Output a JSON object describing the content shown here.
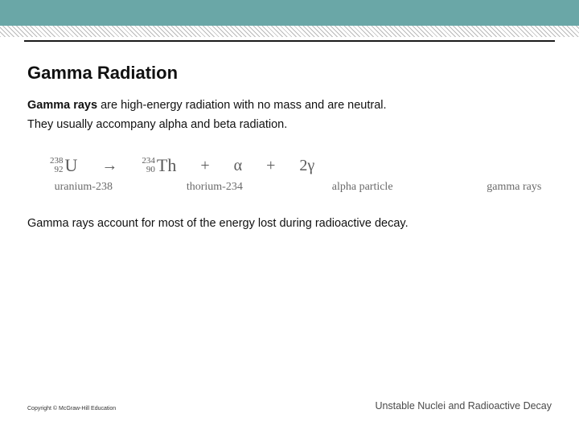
{
  "colors": {
    "topband": "#6aa7a7",
    "hatch_fg": "#b9b9b9",
    "hatch_bg": "#ffffff",
    "rule": "#1a1a1a",
    "text": "#111111",
    "eq_color": "#5b5b5b",
    "label_color": "#6a6a6a",
    "chapter_color": "#4a4a4a"
  },
  "title": "Gamma Radiation",
  "para1_bold": "Gamma rays",
  "para1_rest": " are high-energy radiation with no mass and are neutral.",
  "para2": "They usually accompany alpha and beta radiation.",
  "equation": {
    "reactant": {
      "mass": "238",
      "atomic": "92",
      "symbol": "U"
    },
    "arrow": "→",
    "product": {
      "mass": "234",
      "atomic": "90",
      "symbol": "Th"
    },
    "plus": "+",
    "alpha": "α",
    "gamma_coeff": "2",
    "gamma": "γ",
    "labels": {
      "reactant": "uranium-238",
      "product": "thorium-234",
      "alpha": "alpha particle",
      "gamma": "gamma rays"
    }
  },
  "para3": "Gamma rays account for most of the energy lost during radioactive decay.",
  "footer": {
    "copyright": "Copyright © McGraw-Hill Education",
    "chapter": "Unstable Nuclei and Radioactive Decay"
  }
}
